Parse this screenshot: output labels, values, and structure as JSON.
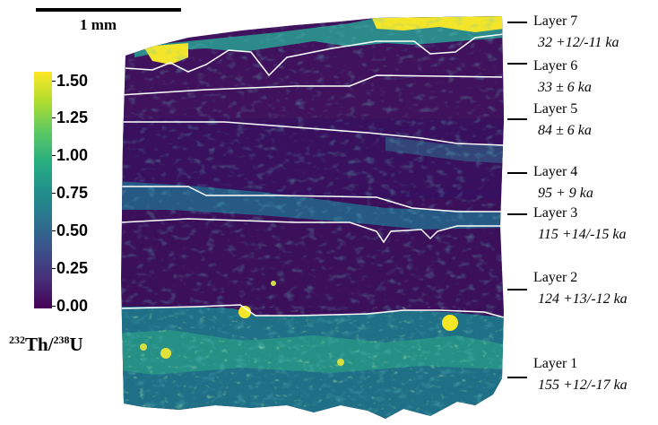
{
  "scale_bar": {
    "label": "1 mm"
  },
  "colorbar": {
    "ticks": [
      "1.50",
      "1.25",
      "1.00",
      "0.75",
      "0.50",
      "0.25",
      "0.00"
    ],
    "colors": [
      "#440154",
      "#3b528b",
      "#21918c",
      "#5ec962",
      "#fde725"
    ]
  },
  "ratio_label": {
    "num_iso": "232",
    "num_el": "Th",
    "sep": "/",
    "den_iso": "238",
    "den_el": "U"
  },
  "layers": [
    {
      "name": "Layer 7",
      "age": "32 +12/-11  ka"
    },
    {
      "name": "Layer 6",
      "age": "33 ± 6 ka"
    },
    {
      "name": "Layer 5",
      "age": "84 ± 6 ka"
    },
    {
      "name": "Layer 4",
      "age": "95 + 9 ka"
    },
    {
      "name": "Layer 3",
      "age": "115 +14/-15 ka"
    },
    {
      "name": "Layer 2",
      "age": "124 +13/-12 ka"
    },
    {
      "name": "Layer 1",
      "age": "155 +12/-17 ka"
    }
  ]
}
